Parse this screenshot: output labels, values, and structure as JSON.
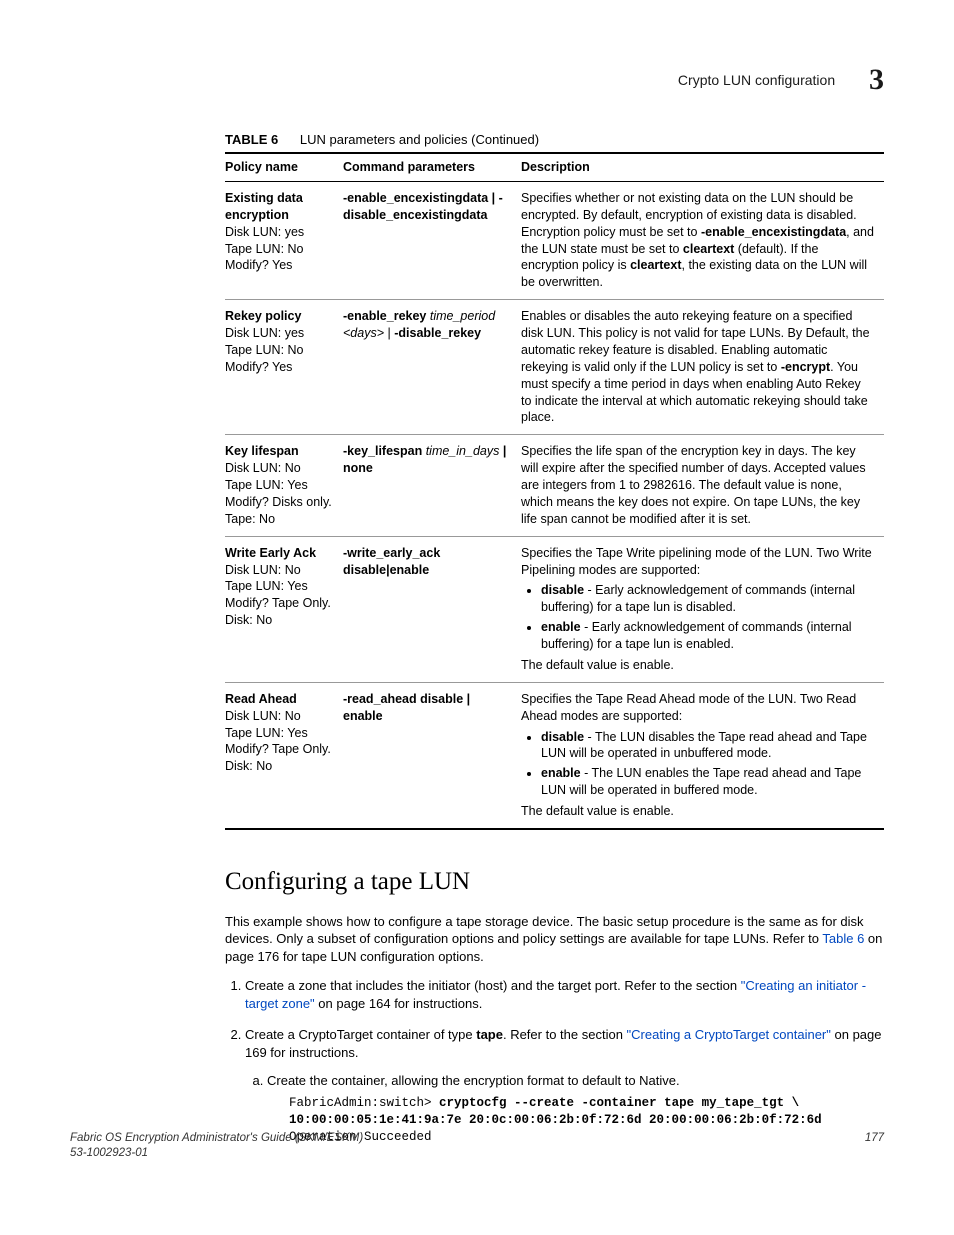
{
  "header": {
    "title": "Crypto LUN configuration",
    "chapter_number": "3"
  },
  "table": {
    "label": "TABLE 6",
    "caption": "LUN parameters and policies  (Continued)",
    "columns": [
      "Policy name",
      "Command parameters",
      "Description"
    ],
    "rows": [
      {
        "name": "Existing data encryption",
        "meta": [
          "Disk LUN: yes",
          "Tape LUN: No",
          "Modify? Yes"
        ],
        "cmd": "-enable_encexistingdata | -disable_encexistingdata",
        "desc_pre": "Specifies whether or not existing data on the LUN should be encrypted. By default, encryption of existing data is disabled. Encryption policy must be set to ",
        "desc_code1": " -enable_encexistingdata",
        "desc_mid": ", and the LUN state must be set to ",
        "desc_b1": "cleartext",
        "desc_mid2": " (default). If the encryption policy is ",
        "desc_b2": "cleartext",
        "desc_end": ", the existing data on the LUN will be overwritten."
      },
      {
        "name": "Rekey policy",
        "meta": [
          "Disk LUN: yes",
          "Tape LUN: No",
          "Modify? Yes"
        ],
        "cmd_b1": "-enable_rekey",
        "cmd_i1": " time_period <days>",
        "cmd_sep": " |  ",
        "cmd_b2": "-disable_rekey",
        "desc_pre": "Enables or disables the auto rekeying feature on a specified disk LUN. This policy is not valid for tape LUNs. By Default, the automatic rekey feature is disabled. Enabling automatic rekeying is valid only if the LUN policy is set to ",
        "desc_code1": " -encrypt",
        "desc_end": ". You must specify a time period in days when enabling Auto Rekey to indicate the interval at which automatic rekeying should take place."
      },
      {
        "name": "Key lifespan",
        "meta": [
          "Disk LUN: No",
          "Tape LUN: Yes",
          "Modify? Disks only. Tape: No"
        ],
        "cmd_b1": "-key_lifespan",
        "cmd_i1": " time_in_days",
        "cmd_rest": " | none",
        "desc": "Specifies the life span of the encryption key in days. The key will expire after the specified number of days. Accepted values are integers from 1 to 2982616. The default value is none, which means the key does not expire. On tape LUNs, the key life span cannot be modified after it is set."
      },
      {
        "name": "Write Early Ack",
        "meta": [
          "Disk LUN: No",
          "Tape LUN: Yes",
          "Modify? Tape Only. Disk: No"
        ],
        "cmd": "-write_early_ack disable|enable",
        "desc_intro": "Specifies the Tape Write pipelining mode of the LUN. Two Write Pipelining modes are supported:",
        "bullets": [
          {
            "b": "disable",
            "t": " - Early acknowledgement of commands (internal buffering) for a tape lun is disabled."
          },
          {
            "b": "enable",
            "t": " - Early acknowledgement of commands (internal buffering) for a tape lun is enabled."
          }
        ],
        "desc_outro": "The default value is enable."
      },
      {
        "name": "Read Ahead",
        "meta": [
          "Disk LUN: No",
          "Tape LUN: Yes",
          "Modify? Tape Only. Disk: No"
        ],
        "cmd": "-read_ahead disable | enable",
        "desc_intro": "Specifies the Tape Read Ahead mode of the LUN. Two Read Ahead modes are supported:",
        "bullets": [
          {
            "b": "disable",
            "t": " - The LUN disables the Tape read ahead and Tape LUN will be operated in unbuffered mode."
          },
          {
            "b": "enable",
            "t": " - The LUN enables the Tape read ahead and Tape LUN will be operated in buffered mode."
          }
        ],
        "desc_outro": "The default value is enable."
      }
    ]
  },
  "section": {
    "heading": "Configuring a tape LUN",
    "para1_pre": "This example shows how to configure a tape storage device. The basic setup procedure is the same as for disk devices. Only a subset of configuration options and policy settings are available for tape LUNs. Refer to ",
    "para1_link": "Table 6",
    "para1_post": " on page 176 for tape LUN configuration options.",
    "step1_pre": "Create a zone that includes the initiator (host) and the target port. Refer to the section ",
    "step1_link": "\"Creating an initiator - target zone\"",
    "step1_post": " on page 164 for instructions.",
    "step2_pre": "Create a CryptoTarget container of type ",
    "step2_b": "tape",
    "step2_mid": ". Refer to the section ",
    "step2_link": "\"Creating a CryptoTarget container\"",
    "step2_post": " on page 169 for instructions.",
    "sub_a": "Create the container, allowing the encryption format to default to Native.",
    "code_prefix": "FabricAdmin:switch> ",
    "code_bold": "cryptocfg --create -container tape my_tape_tgt \\ 10:00:00:05:1e:41:9a:7e 20:0c:00:06:2b:0f:72:6d 20:00:00:06:2b:0f:72:6d",
    "code_result": "Operation Succeeded"
  },
  "footer": {
    "left1": "Fabric OS Encryption Administrator's Guide (SKM/ESKM)",
    "left2": "53-1002923-01",
    "page": "177"
  }
}
